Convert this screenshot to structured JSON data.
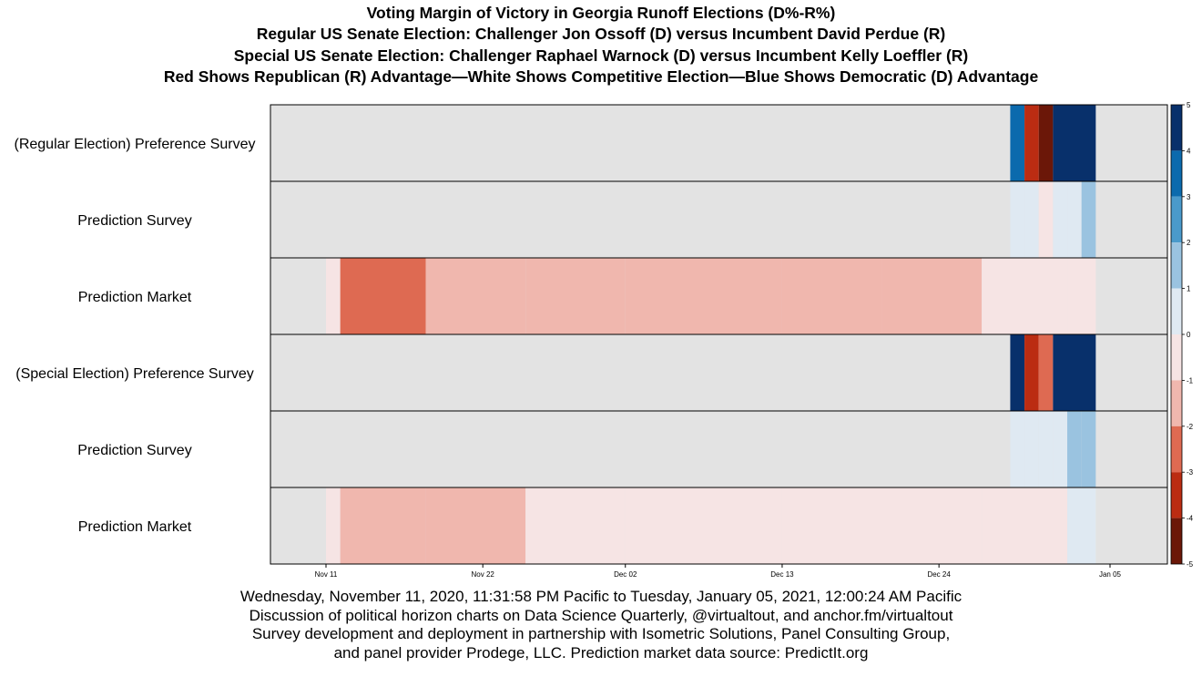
{
  "title_lines": [
    "Voting Margin of Victory in Georgia Runoff Elections (D%-R%)",
    "Regular US Senate Election: Challenger Jon Ossoff (D) versus Incumbent David Perdue (R)",
    "Special US Senate Election: Challenger Raphael Warnock (D) versus Incumbent Kelly Loeffler (R)",
    "Red Shows Republican (R) Advantage—White Shows Competitive Election—Blue Shows Democratic (D) Advantage"
  ],
  "caption_lines": [
    "Wednesday, November 11, 2020, 11:31:58 PM Pacific to Tuesday, January 05, 2021, 12:00:24 AM Pacific",
    "Discussion of political horizon charts on Data Science Quarterly, @virtualtout, and anchor.fm/virtualtout",
    "Survey development and deployment in partnership with Isometric Solutions, Panel Consulting Group,",
    "and panel provider Prodege, LLC.  Prediction market data source: PredictIt.org"
  ],
  "chart_data": {
    "type": "heatmap",
    "subtype": "horizon",
    "x_range": [
      "2020-11-11",
      "2021-01-05"
    ],
    "x_ticks": [
      "Nov 11",
      "Nov 22",
      "Dec 02",
      "Dec 13",
      "Dec 24",
      "Jan 05"
    ],
    "x_tick_dates": [
      "2020-11-11",
      "2020-11-22",
      "2020-12-02",
      "2020-12-13",
      "2020-12-24",
      "2021-01-05"
    ],
    "color_scale": {
      "min": -5,
      "max": 5,
      "ticks": [
        5,
        4,
        3,
        2,
        1,
        0,
        -1,
        -2,
        -3,
        -4,
        -5
      ],
      "band_colors_top_to_bottom": [
        "#08306b",
        "#0b6aad",
        "#4a9acb",
        "#9ac3e0",
        "#dfe9f2",
        "#f6e4e4",
        "#f0b7ae",
        "#de6a52",
        "#bb2c12",
        "#6b1708"
      ],
      "no_data_color": "#e3e3e3"
    },
    "rows": [
      {
        "label": "(Regular Election) Preference Survey",
        "segments": [
          {
            "start": "2020-12-29",
            "end": "2020-12-30",
            "value": 3.5
          },
          {
            "start": "2020-12-30",
            "end": "2020-12-31",
            "value": -3.2
          },
          {
            "start": "2020-12-31",
            "end": "2021-01-01",
            "value": -4.6
          },
          {
            "start": "2021-01-01",
            "end": "2021-01-04",
            "value": 5.0
          }
        ]
      },
      {
        "label": "Prediction Survey",
        "segments": [
          {
            "start": "2020-12-29",
            "end": "2020-12-30",
            "value": 0.5
          },
          {
            "start": "2020-12-30",
            "end": "2020-12-31",
            "value": 0.8
          },
          {
            "start": "2020-12-31",
            "end": "2021-01-01",
            "value": -0.6
          },
          {
            "start": "2021-01-01",
            "end": "2021-01-02",
            "value": 0.7
          },
          {
            "start": "2021-01-02",
            "end": "2021-01-03",
            "value": 0.4
          },
          {
            "start": "2021-01-03",
            "end": "2021-01-04",
            "value": 1.3
          }
        ]
      },
      {
        "label": "Prediction Market",
        "segments": [
          {
            "start": "2020-11-11",
            "end": "2020-11-12",
            "value": -0.8
          },
          {
            "start": "2020-11-12",
            "end": "2020-11-18",
            "value": -2.3
          },
          {
            "start": "2020-11-18",
            "end": "2020-11-25",
            "value": -1.7
          },
          {
            "start": "2020-11-25",
            "end": "2020-12-02",
            "value": -1.4
          },
          {
            "start": "2020-12-02",
            "end": "2020-12-13",
            "value": -1.1
          },
          {
            "start": "2020-12-13",
            "end": "2020-12-20",
            "value": -1.0
          },
          {
            "start": "2020-12-20",
            "end": "2020-12-27",
            "value": -1.1
          },
          {
            "start": "2020-12-27",
            "end": "2021-01-02",
            "value": -0.8
          },
          {
            "start": "2021-01-02",
            "end": "2021-01-04",
            "value": -0.3
          }
        ]
      },
      {
        "label": "(Special Election) Preference Survey",
        "segments": [
          {
            "start": "2020-12-29",
            "end": "2020-12-30",
            "value": 4.8
          },
          {
            "start": "2020-12-30",
            "end": "2020-12-31",
            "value": -3.4
          },
          {
            "start": "2020-12-31",
            "end": "2021-01-01",
            "value": -2.5
          },
          {
            "start": "2021-01-01",
            "end": "2021-01-04",
            "value": 5.0
          }
        ]
      },
      {
        "label": "Prediction Survey",
        "segments": [
          {
            "start": "2020-12-29",
            "end": "2020-12-30",
            "value": 0.4
          },
          {
            "start": "2020-12-30",
            "end": "2020-12-31",
            "value": 0.5
          },
          {
            "start": "2020-12-31",
            "end": "2021-01-01",
            "value": 0.3
          },
          {
            "start": "2021-01-01",
            "end": "2021-01-02",
            "value": 0.6
          },
          {
            "start": "2021-01-02",
            "end": "2021-01-03",
            "value": 1.5
          },
          {
            "start": "2021-01-03",
            "end": "2021-01-04",
            "value": 1.7
          }
        ]
      },
      {
        "label": "Prediction Market",
        "segments": [
          {
            "start": "2020-11-11",
            "end": "2020-11-12",
            "value": -0.6
          },
          {
            "start": "2020-11-12",
            "end": "2020-11-18",
            "value": -1.3
          },
          {
            "start": "2020-11-18",
            "end": "2020-11-25",
            "value": -1.1
          },
          {
            "start": "2020-11-25",
            "end": "2020-12-02",
            "value": -0.9
          },
          {
            "start": "2020-12-02",
            "end": "2020-12-13",
            "value": -0.2
          },
          {
            "start": "2020-12-13",
            "end": "2020-12-20",
            "value": -0.5
          },
          {
            "start": "2020-12-20",
            "end": "2020-12-27",
            "value": -0.6
          },
          {
            "start": "2020-12-27",
            "end": "2021-01-02",
            "value": -0.4
          },
          {
            "start": "2021-01-02",
            "end": "2021-01-04",
            "value": 0.3
          }
        ]
      }
    ]
  }
}
